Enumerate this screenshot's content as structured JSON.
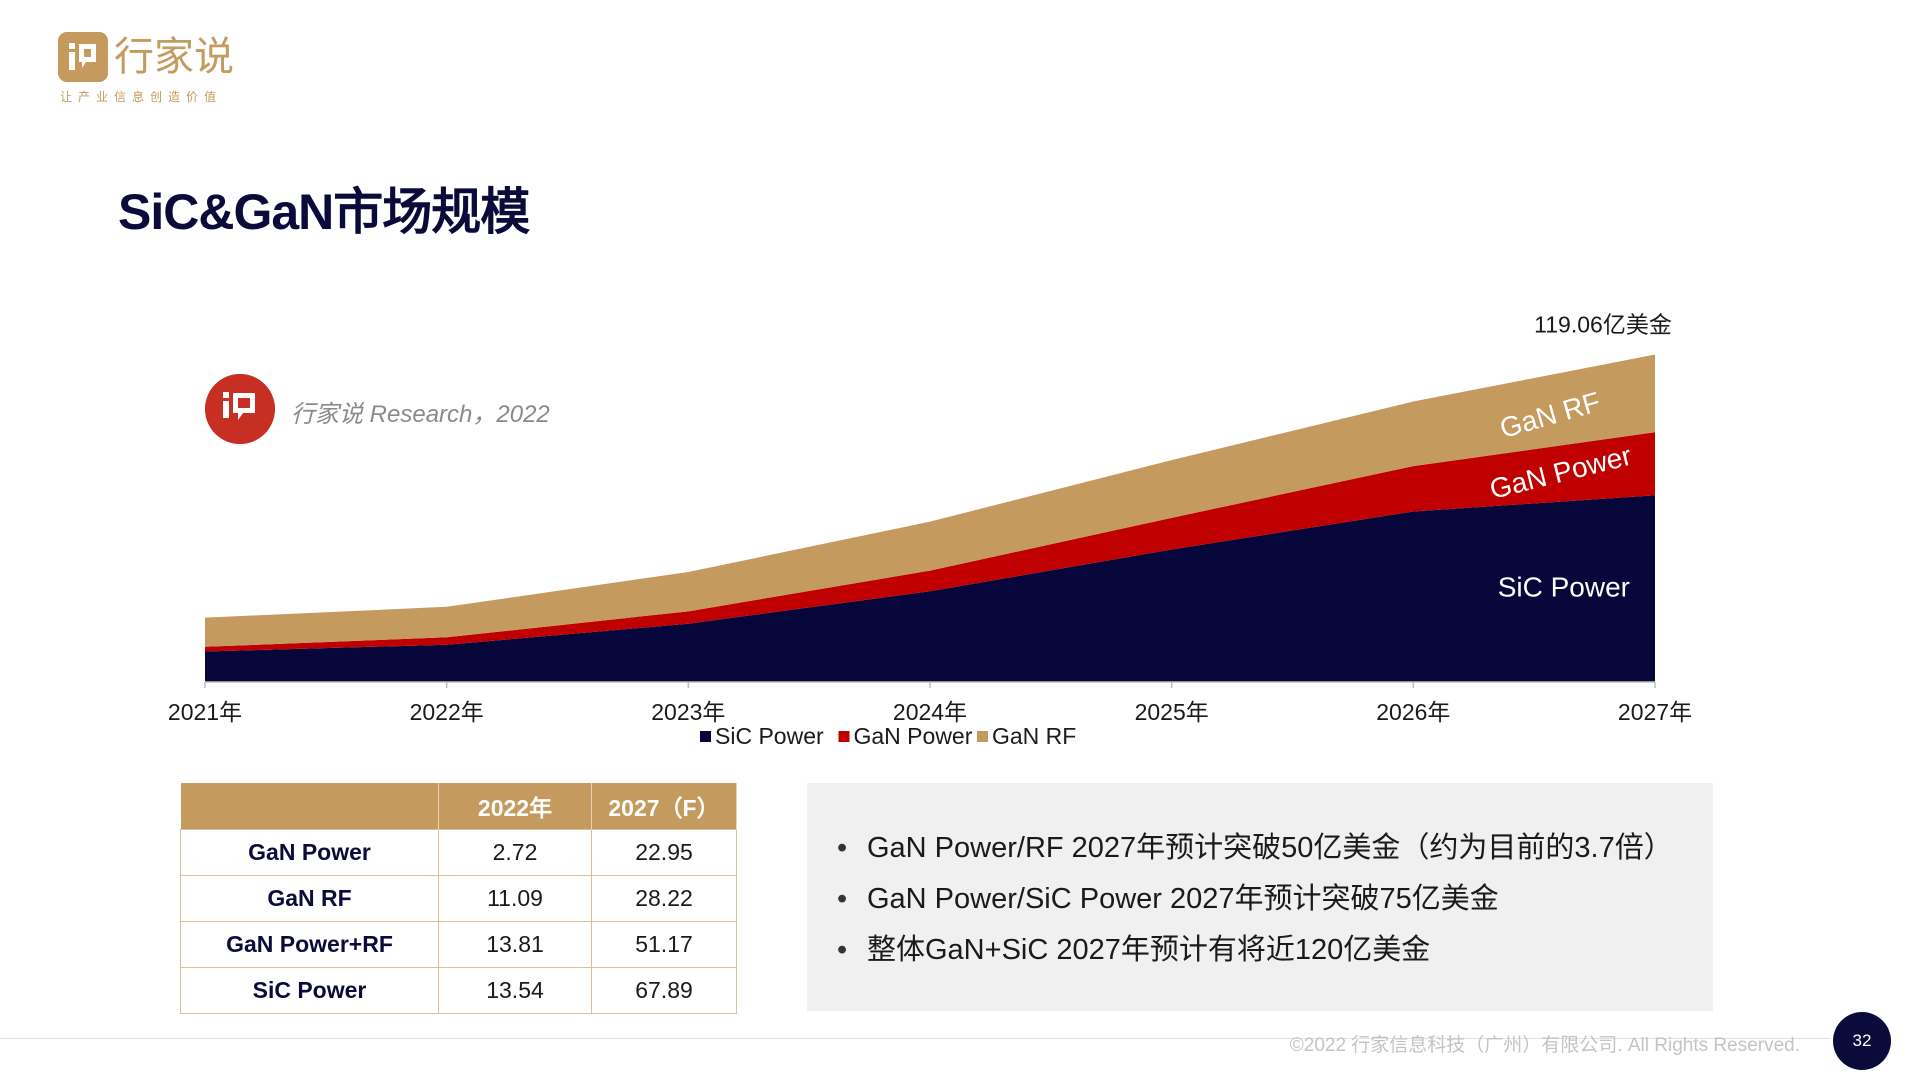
{
  "logo": {
    "name": "行家说",
    "slogan": "让产业信息创造价值",
    "brand_color": "#c49a5e"
  },
  "page_title": "SiC&GaN市场规模",
  "source_badge": {
    "text": "行家说 Research，2022",
    "color": "#c62f22"
  },
  "chart_data": {
    "type": "area",
    "stacked": true,
    "categories": [
      "2021年",
      "2022年",
      "2023年",
      "2024年",
      "2025年",
      "2026年",
      "2027年"
    ],
    "series": [
      {
        "name": "SiC Power",
        "color": "#06063a",
        "values": [
          11.1,
          13.54,
          21.2,
          33.0,
          48.2,
          62.0,
          67.89
        ]
      },
      {
        "name": "GaN Power",
        "color": "#c00000",
        "values": [
          1.7,
          2.72,
          4.5,
          7.5,
          11.5,
          16.5,
          22.95
        ]
      },
      {
        "name": "GaN RF",
        "color": "#c49a5e",
        "values": [
          10.6,
          11.09,
          14.3,
          17.8,
          21.0,
          23.5,
          28.22
        ]
      }
    ],
    "ylim": [
      0,
      120
    ],
    "total_annotation": "119.06亿美金",
    "legend_position": "bottom",
    "xlabel": "",
    "ylabel": ""
  },
  "table": {
    "headers": [
      "",
      "2022年",
      "2027（F）"
    ],
    "rows": [
      {
        "label": "GaN Power",
        "v2022": "2.72",
        "v2027": "22.95"
      },
      {
        "label": "GaN RF",
        "v2022": "11.09",
        "v2027": "28.22"
      },
      {
        "label": "GaN Power+RF",
        "v2022": "13.81",
        "v2027": "51.17"
      },
      {
        "label": "SiC Power",
        "v2022": "13.54",
        "v2027": "67.89"
      }
    ]
  },
  "notes": [
    "GaN Power/RF 2027年预计突破50亿美金（约为目前的3.7倍）",
    "GaN Power/SiC Power 2027年预计突破75亿美金",
    "整体GaN+SiC 2027年预计有将近120亿美金"
  ],
  "footer": {
    "copyright": "©2022 行家信息科技（广州）有限公司. All Rights Reserved.",
    "page_number": "32"
  }
}
